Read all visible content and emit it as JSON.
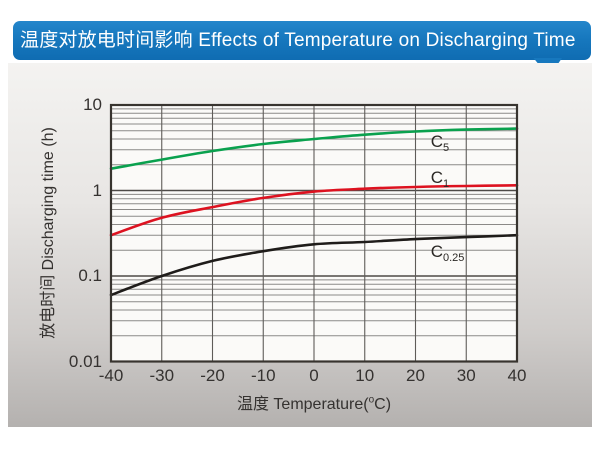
{
  "header": {
    "title": "温度对放电时间影响 Effects of Temperature on Discharging Time"
  },
  "colors": {
    "banner_bg": "#1778be",
    "banner_text": "#ffffff",
    "plot_bg": "#fbfaf8",
    "grid_minor": "#8b8987",
    "grid_major": "#4e4a47",
    "grid_vertical": "#5f5c59",
    "plot_border": "#38342f"
  },
  "chart_data": {
    "type": "line",
    "title": "温度对放电时间影响 Effects of Temperature on Discharging Time",
    "xlabel": {
      "prefix": "温度 Temperature(",
      "sup": "o",
      "suffix": "C)"
    },
    "ylabel": "放电时间 Discharging time (h)",
    "yscale": "log",
    "xlim": [
      -40,
      40
    ],
    "ylim": [
      0.01,
      10
    ],
    "grid": true,
    "legend_position": "inline-labels",
    "x": [
      -40,
      -30,
      -20,
      -10,
      0,
      10,
      20,
      30,
      40
    ],
    "x_ticks": [
      "-40",
      "-30",
      "-20",
      "-10",
      "0",
      "10",
      "20",
      "30",
      "40"
    ],
    "y_ticks": [
      "10",
      "1",
      "0.1",
      "0.01"
    ],
    "series": [
      {
        "name": "C5",
        "label_main": "C",
        "label_sub": "5",
        "color": "#0aa14e",
        "values": [
          1.8,
          2.3,
          2.9,
          3.5,
          4.0,
          4.5,
          4.9,
          5.15,
          5.3
        ],
        "label_x": 23,
        "label_y": 3.6
      },
      {
        "name": "C1",
        "label_main": "C",
        "label_sub": "1",
        "color": "#dd1220",
        "values": [
          0.3,
          0.48,
          0.64,
          0.82,
          0.97,
          1.05,
          1.1,
          1.13,
          1.15
        ],
        "label_x": 23,
        "label_y": 1.35
      },
      {
        "name": "C0.25",
        "label_main": "C",
        "label_sub": "0.25",
        "color": "#1f1c1a",
        "values": [
          0.06,
          0.1,
          0.15,
          0.195,
          0.235,
          0.25,
          0.27,
          0.285,
          0.3
        ],
        "label_x": 23,
        "label_y": 0.185
      }
    ]
  }
}
